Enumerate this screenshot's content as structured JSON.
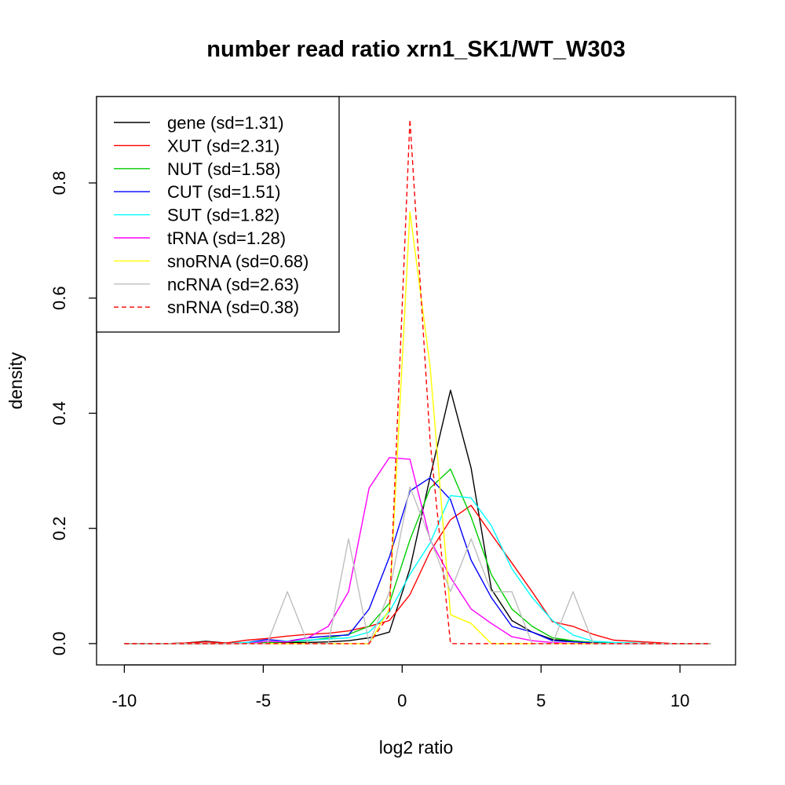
{
  "chart_data": {
    "type": "line",
    "title": "number read ratio xrn1_SK1/WT_W303",
    "xlabel": "log2 ratio",
    "ylabel": "density",
    "xlim": [
      -11,
      12
    ],
    "ylim": [
      -0.037,
      0.95
    ],
    "xticks": [
      -10,
      -5,
      0,
      5,
      10
    ],
    "xtick_labels": [
      "-10",
      "-5",
      "0",
      "5",
      "10"
    ],
    "yticks": [
      0.0,
      0.2,
      0.4,
      0.6,
      0.8
    ],
    "ytick_labels": [
      "0.0",
      "0.2",
      "0.4",
      "0.6",
      "0.8"
    ],
    "grid": false,
    "legend_position": "top-left",
    "x": [
      -10,
      -9.27,
      -8.53,
      -7.8,
      -7.06,
      -6.33,
      -5.6,
      -4.86,
      -4.13,
      -3.39,
      -2.66,
      -1.93,
      -1.19,
      -0.46,
      0.28,
      1.01,
      1.74,
      2.48,
      3.21,
      3.95,
      4.68,
      5.41,
      6.15,
      6.88,
      7.62,
      8.35,
      9.09,
      9.82,
      10.55,
      11.1
    ],
    "series": [
      {
        "name": "gene (sd=1.31)",
        "color": "#000000",
        "dash": false,
        "values": [
          0,
          0,
          0,
          0.001,
          0.004,
          0.001,
          0.001,
          0.002,
          0.002,
          0.002,
          0.003,
          0.005,
          0.01,
          0.02,
          0.13,
          0.29,
          0.44,
          0.305,
          0.095,
          0.04,
          0.02,
          0.007,
          0.004,
          0.002,
          0.001,
          0.001,
          0,
          0,
          0,
          0
        ]
      },
      {
        "name": "XUT (sd=2.31)",
        "color": "#ff0000",
        "dash": false,
        "values": [
          0,
          0,
          0,
          0.001,
          0.003,
          0.001,
          0.006,
          0.009,
          0.013,
          0.016,
          0.018,
          0.022,
          0.03,
          0.04,
          0.085,
          0.16,
          0.215,
          0.24,
          0.19,
          0.14,
          0.09,
          0.038,
          0.03,
          0.016,
          0.006,
          0.004,
          0.002,
          0,
          0,
          0
        ]
      },
      {
        "name": "NUT (sd=1.58)",
        "color": "#00cd00",
        "dash": false,
        "values": [
          0,
          0,
          0,
          0,
          0,
          0,
          0.001,
          0.002,
          0.003,
          0.005,
          0.01,
          0.016,
          0.03,
          0.07,
          0.18,
          0.27,
          0.303,
          0.22,
          0.12,
          0.06,
          0.03,
          0.01,
          0.005,
          0.002,
          0.001,
          0,
          0,
          0,
          0,
          0
        ]
      },
      {
        "name": "CUT (sd=1.51)",
        "color": "#0000ff",
        "dash": false,
        "values": [
          0,
          0,
          0,
          0,
          0,
          0,
          0.002,
          0.007,
          0.004,
          0.01,
          0.013,
          0.015,
          0.06,
          0.15,
          0.265,
          0.288,
          0.25,
          0.145,
          0.08,
          0.03,
          0.02,
          0.005,
          0.003,
          0.001,
          0,
          0,
          0,
          0,
          0,
          0
        ]
      },
      {
        "name": "SUT (sd=1.82)",
        "color": "#00ffff",
        "dash": false,
        "values": [
          0,
          0,
          0,
          0,
          0,
          0,
          0.002,
          0.004,
          0.004,
          0.006,
          0.008,
          0.01,
          0.02,
          0.055,
          0.12,
          0.175,
          0.257,
          0.253,
          0.205,
          0.13,
          0.08,
          0.04,
          0.015,
          0.004,
          0.002,
          0.001,
          0,
          0,
          0,
          0
        ]
      },
      {
        "name": "tRNA (sd=1.28)",
        "color": "#ff00ff",
        "dash": false,
        "values": [
          0,
          0,
          0,
          0,
          0,
          0,
          0,
          0.004,
          0.003,
          0.01,
          0.03,
          0.09,
          0.27,
          0.323,
          0.32,
          0.18,
          0.115,
          0.06,
          0.035,
          0.012,
          0.005,
          0.002,
          0,
          0,
          0,
          0,
          0,
          0,
          0,
          0
        ]
      },
      {
        "name": "snoRNA (sd=0.68)",
        "color": "#ffff00",
        "dash": false,
        "values": [
          0,
          0,
          0,
          0,
          0,
          0,
          0,
          0,
          0,
          0,
          0,
          0,
          0,
          0.06,
          0.75,
          0.48,
          0.05,
          0.035,
          0,
          0,
          0,
          0,
          0,
          0,
          0,
          0,
          0,
          0,
          0,
          0
        ]
      },
      {
        "name": "ncRNA (sd=2.63)",
        "color": "#bebebe",
        "dash": false,
        "values": [
          0,
          0,
          0,
          0,
          0,
          0,
          0,
          0,
          0.09,
          0,
          0,
          0.182,
          0,
          0.09,
          0.272,
          0.182,
          0.09,
          0.182,
          0.09,
          0.09,
          0,
          0,
          0.09,
          0,
          0,
          0,
          0,
          0,
          0,
          0
        ]
      },
      {
        "name": "snRNA (sd=0.38)",
        "color": "#ff0000",
        "dash": true,
        "values": [
          0,
          0,
          0,
          0,
          0,
          0,
          0,
          0,
          0,
          0,
          0,
          0,
          0,
          0.05,
          0.91,
          0.35,
          0,
          0,
          0,
          0,
          0,
          0,
          0,
          0,
          0,
          0,
          0,
          0,
          0,
          0
        ]
      }
    ]
  }
}
